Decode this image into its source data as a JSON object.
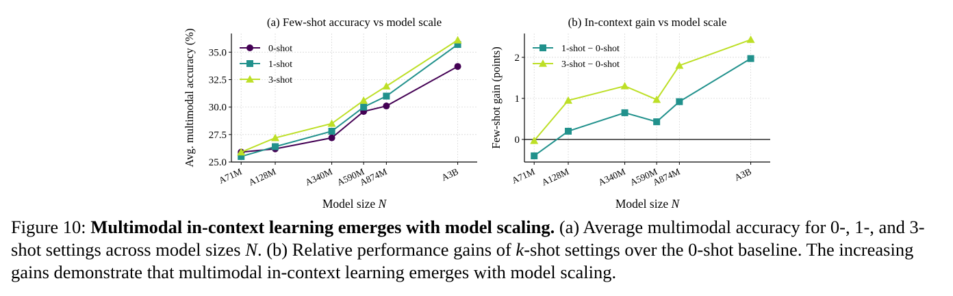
{
  "figure": {
    "caption": {
      "label": "Figure 10: ",
      "bold": "Multimodal in-context learning emerges with model scaling.",
      "seg1": " (a) Average multimodal accuracy for 0-, 1-, and 3-shot settings across model sizes ",
      "var_n": "N",
      "seg2": ". (b) Relative performance gains of ",
      "var_k": "k",
      "seg3": "-shot settings over the 0-shot baseline. The increasing gains demonstrate that multimodal in-context learning emerges with model scaling."
    }
  },
  "chart_data": [
    {
      "type": "line",
      "title": "(a) Few-shot accuracy vs model scale",
      "xlabel": "Model size",
      "xlabel_var": "N",
      "ylabel": "Avg. multimodal accuracy (%)",
      "categories": [
        "A71M",
        "A128M",
        "A340M",
        "A590M",
        "A874M",
        "A3B"
      ],
      "x_positions": [
        71,
        128,
        340,
        590,
        874,
        3000
      ],
      "x_scale": "log",
      "xlim": [
        60,
        4200
      ],
      "ylim": [
        25.0,
        36.7
      ],
      "yticks": [
        "25.0",
        "27.5",
        "30.0",
        "32.5",
        "35.0"
      ],
      "grid": true,
      "legend": "top-left",
      "series": [
        {
          "name": "0-shot",
          "marker": "circle",
          "color": "#440154",
          "values": [
            25.9,
            26.2,
            27.2,
            29.6,
            30.1,
            33.7
          ]
        },
        {
          "name": "1-shot",
          "marker": "square",
          "color": "#21918c",
          "values": [
            25.5,
            26.4,
            27.8,
            30.0,
            31.0,
            35.7
          ]
        },
        {
          "name": "3-shot",
          "marker": "triangle",
          "color": "#bddf26",
          "values": [
            25.9,
            27.2,
            28.5,
            30.6,
            31.9,
            36.1
          ]
        }
      ]
    },
    {
      "type": "line",
      "title": "(b) In-context gain vs model scale",
      "xlabel": "Model size",
      "xlabel_var": "N",
      "ylabel": "Few-shot gain (points)",
      "categories": [
        "A71M",
        "A128M",
        "A340M",
        "A590M",
        "A874M",
        "A3B"
      ],
      "x_positions": [
        71,
        128,
        340,
        590,
        874,
        3000
      ],
      "x_scale": "log",
      "xlim": [
        60,
        4200
      ],
      "ylim": [
        -0.55,
        2.58
      ],
      "yticks": [
        "0",
        "1",
        "2"
      ],
      "zero_line": true,
      "grid": true,
      "legend": "top-left",
      "series": [
        {
          "name": "1-shot − 0-shot",
          "marker": "square",
          "color": "#21918c",
          "values": [
            -0.4,
            0.2,
            0.65,
            0.43,
            0.92,
            1.97
          ]
        },
        {
          "name": "3-shot − 0-shot",
          "marker": "triangle",
          "color": "#bddf26",
          "values": [
            -0.03,
            0.95,
            1.3,
            0.97,
            1.8,
            2.43
          ]
        }
      ]
    }
  ]
}
